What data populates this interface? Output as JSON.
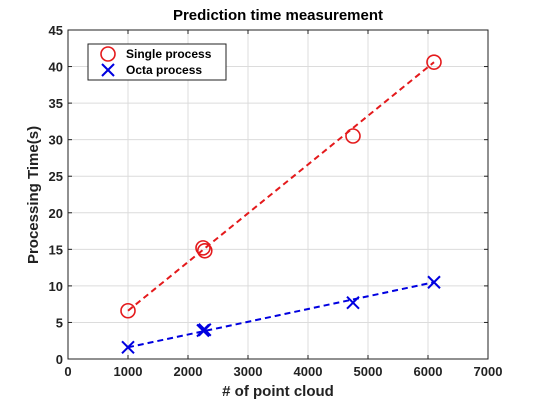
{
  "chart_data": {
    "type": "scatter",
    "title": "Prediction time measurement",
    "xlabel": "# of point cloud",
    "ylabel": "Processing Time(s)",
    "xlim": [
      0,
      7000
    ],
    "ylim": [
      0,
      45
    ],
    "x_ticks": [
      0,
      1000,
      2000,
      3000,
      4000,
      5000,
      6000,
      7000
    ],
    "y_ticks": [
      0,
      5,
      10,
      15,
      20,
      25,
      30,
      35,
      40,
      45
    ],
    "grid": true,
    "legend_position": "top-left",
    "series": [
      {
        "name": "Single process",
        "marker": "circle",
        "color": "#e41a1c",
        "points": [
          {
            "x": 1000,
            "y": 6.6
          },
          {
            "x": 2250,
            "y": 15.2
          },
          {
            "x": 2280,
            "y": 14.8
          },
          {
            "x": 4750,
            "y": 30.5
          },
          {
            "x": 6100,
            "y": 40.6
          }
        ],
        "fit_line": {
          "x": [
            1000,
            6100
          ],
          "y": [
            6.6,
            40.6
          ]
        }
      },
      {
        "name": "Octa process",
        "marker": "x",
        "color": "#0000e0",
        "points": [
          {
            "x": 1000,
            "y": 1.6
          },
          {
            "x": 2250,
            "y": 3.9
          },
          {
            "x": 2280,
            "y": 4.0
          },
          {
            "x": 4750,
            "y": 7.7
          },
          {
            "x": 6100,
            "y": 10.5
          }
        ],
        "fit_line": {
          "x": [
            1000,
            6100
          ],
          "y": [
            1.6,
            10.5
          ]
        }
      }
    ]
  }
}
